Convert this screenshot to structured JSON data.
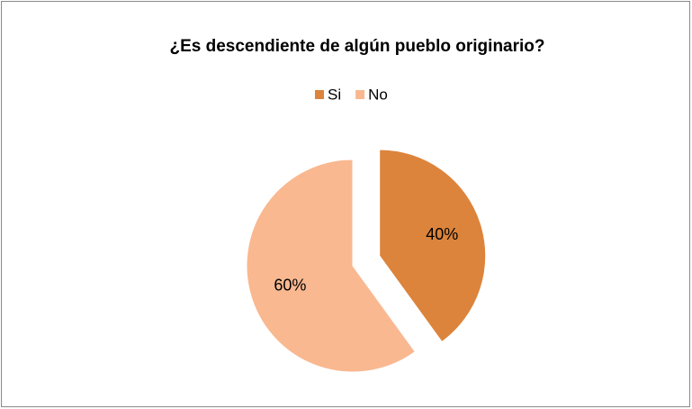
{
  "chart_data": {
    "type": "pie",
    "title": "¿Es descendiente de algún pueblo originario?",
    "categories": [
      "Si",
      "No"
    ],
    "values": [
      40,
      60
    ],
    "value_labels": [
      "40%",
      "60%"
    ],
    "colors": [
      "#dc843c",
      "#f9b890"
    ],
    "legend": "top"
  }
}
